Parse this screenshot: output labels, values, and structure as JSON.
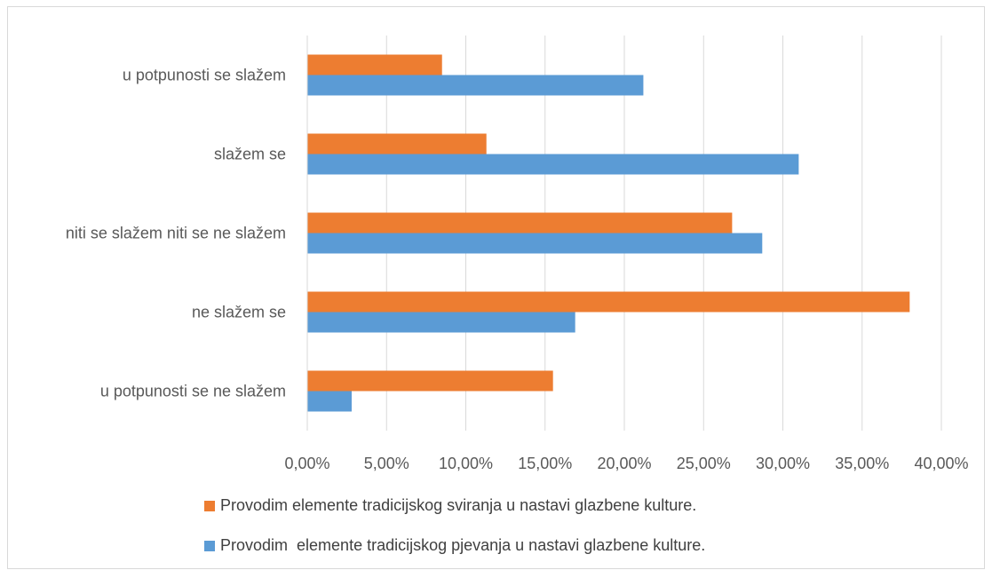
{
  "chart_data": {
    "type": "bar",
    "orientation": "horizontal",
    "categories": [
      "u potpunosti se ne slažem",
      "ne slažem se",
      "niti se slažem niti se ne slažem",
      "slažem se",
      "u potpunosti se slažem"
    ],
    "series": [
      {
        "name": "Provodim  elemente tradicijskog pjevanja u nastavi glazbene kulture.",
        "color": "#5B9BD5",
        "values": [
          2.8,
          16.9,
          28.7,
          31.0,
          21.2
        ]
      },
      {
        "name": "Provodim elemente tradicijskog sviranja u nastavi glazbene kulture.",
        "color": "#ED7D31",
        "values": [
          15.5,
          38.0,
          26.8,
          11.3,
          8.5
        ]
      }
    ],
    "xlim": [
      0,
      40
    ],
    "xticks": [
      "0,00%",
      "5,00%",
      "10,00%",
      "15,00%",
      "20,00%",
      "25,00%",
      "30,00%",
      "35,00%",
      "40,00%"
    ],
    "grid": "vertical",
    "legend_position": "bottom",
    "title": "",
    "xlabel": "",
    "ylabel": ""
  }
}
